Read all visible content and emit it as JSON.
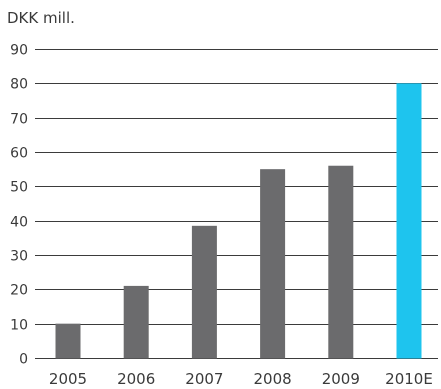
{
  "chart_data": {
    "type": "bar",
    "ylabel": "DKK mill.",
    "categories": [
      "2005",
      "2006",
      "2007",
      "2008",
      "2009",
      "2010E"
    ],
    "values": [
      10,
      21,
      38.5,
      55,
      56,
      80
    ],
    "ylim": [
      0,
      90
    ],
    "yticks": [
      0,
      10,
      20,
      30,
      40,
      50,
      60,
      70,
      80,
      90
    ],
    "grid": true,
    "colors": {
      "actual": "#6b6b6d",
      "estimate": "#1ec4ee",
      "text": "#3a3a3a",
      "grid": "#3b3b3b"
    },
    "highlight_index": 5
  }
}
